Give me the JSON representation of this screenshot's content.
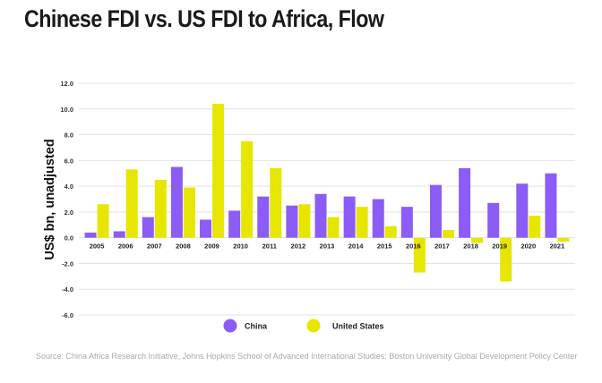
{
  "title": "Chinese FDI vs. US FDI to Africa, Flow",
  "source": "Source: China Africa Research Initiative, Johns Hopkins School of Advanced International Studies; Boston University Global Development Policy Center",
  "colors": {
    "china": "#8b5cf6",
    "us": "#e6e600",
    "grid": "#e3e3e3",
    "axis_text": "#333333"
  },
  "chart_data": {
    "type": "bar",
    "title": "Chinese FDI vs. US FDI to Africa, Flow",
    "xlabel": "",
    "ylabel": "US$ bn, unadjusted",
    "ylim": [
      -6,
      12
    ],
    "yticks": [
      "12.0",
      "10.0",
      "8.0",
      "6.0",
      "4.0",
      "2.0",
      "0.0",
      "-2.0",
      "-4.0",
      "-6.0"
    ],
    "ytick_values": [
      12,
      10,
      8,
      6,
      4,
      2,
      0,
      -2,
      -4,
      -6
    ],
    "grid": true,
    "legend": "bottom-center",
    "categories": [
      "2005",
      "2006",
      "2007",
      "2008",
      "2009",
      "2010",
      "2011",
      "2012",
      "2013",
      "2014",
      "2015",
      "2016",
      "2017",
      "2018",
      "2019",
      "2020",
      "2021"
    ],
    "series": [
      {
        "name": "China",
        "values": [
          0.4,
          0.5,
          1.6,
          5.5,
          1.4,
          2.1,
          3.2,
          2.5,
          3.4,
          3.2,
          3.0,
          2.4,
          4.1,
          5.4,
          2.7,
          4.2,
          5.0
        ]
      },
      {
        "name": "United States",
        "values": [
          2.6,
          5.3,
          4.5,
          3.9,
          10.4,
          7.5,
          5.4,
          2.6,
          1.6,
          2.4,
          0.9,
          -2.7,
          0.6,
          -0.4,
          -3.4,
          1.7,
          -0.3
        ]
      }
    ]
  }
}
